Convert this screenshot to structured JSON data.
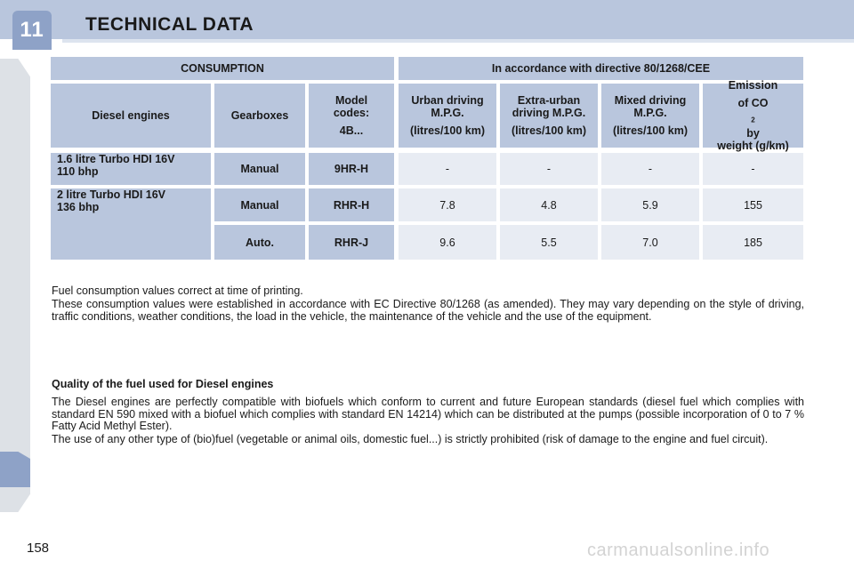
{
  "header": {
    "chapter_number": "11",
    "title": "TECHNICAL DATA"
  },
  "table": {
    "top_headers": {
      "consumption": "CONSUMPTION",
      "directive": "In accordance with directive 80/1268/CEE"
    },
    "column_headers": {
      "diesel_engines": "Diesel engines",
      "gearboxes": "Gearboxes",
      "model_codes_line1": "Model",
      "model_codes_line2": "codes:",
      "model_codes_line3": "4B...",
      "urban_line1": "Urban driving",
      "urban_line2": "M.P.G.",
      "urban_line3": "(litres/100 km)",
      "extra_urban_line1": "Extra-urban",
      "extra_urban_line2": "driving M.P.G.",
      "extra_urban_line3": "(litres/100 km)",
      "mixed_line1": "Mixed driving",
      "mixed_line2": "M.P.G.",
      "mixed_line3": "(litres/100 km)",
      "emission_line1": "Emission",
      "emission_line2_prefix": "of CO",
      "emission_line2_sub": "2",
      "emission_line2_suffix": " by",
      "emission_line3": "weight (g/km)"
    },
    "engine_1": {
      "line1": "1.6 litre Turbo HDI 16V",
      "line2": "110 bhp"
    },
    "engine_2": {
      "line1": "2 litre Turbo HDI 16V",
      "line2": "136 bhp"
    },
    "rows": [
      {
        "gearbox": "Manual",
        "code": "9HR-H",
        "urban": "-",
        "extra_urban": "-",
        "mixed": "-",
        "emission": "-"
      },
      {
        "gearbox": "Manual",
        "code": "RHR-H",
        "urban": "7.8",
        "extra_urban": "4.8",
        "mixed": "5.9",
        "emission": "155"
      },
      {
        "gearbox": "Auto.",
        "code": "RHR-J",
        "urban": "9.6",
        "extra_urban": "5.5",
        "mixed": "7.0",
        "emission": "185"
      }
    ]
  },
  "notes": {
    "p1": "Fuel consumption values correct at time of printing.",
    "p2": "These consumption values were established in accordance with EC Directive 80/1268 (as amended). They may vary depending on the style of driving, traffic conditions, weather conditions, the load in the vehicle, the maintenance of the vehicle and the use of the equipment.",
    "quality_heading": "Quality of the fuel used for Diesel engines",
    "p3": "The Diesel engines are perfectly compatible with biofuels which conform to current and future European standards (diesel fuel which complies with standard EN 590 mixed with a biofuel which complies with standard EN 14214) which can be distributed at the pumps (possible incorporation of 0 to 7 % Fatty Acid Methyl Ester).",
    "p4": "The use of any other type of (bio)fuel (vegetable or animal oils, domestic fuel...) is strictly prohibited (risk of damage to the engine and fuel circuit)."
  },
  "footer": {
    "page_number": "158",
    "watermark": "carmanualsonline.info"
  },
  "colors": {
    "header_blue": "#b9c6dd",
    "tab_blue": "#8ea2c7",
    "cell_light": "#e8ecf3"
  }
}
